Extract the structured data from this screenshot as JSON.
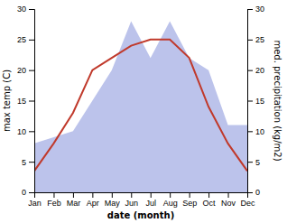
{
  "chart_data": {
    "type": "line",
    "categories": [
      "Jan",
      "Feb",
      "Mar",
      "Apr",
      "May",
      "Jun",
      "Jul",
      "Aug",
      "Sep",
      "Oct",
      "Nov",
      "Dec"
    ],
    "series": [
      {
        "type": "area",
        "axis": "y2",
        "color": "#b0b8e8",
        "values": [
          8,
          9,
          10,
          15,
          20,
          28,
          22,
          28,
          22,
          20,
          11,
          11
        ]
      },
      {
        "type": "line",
        "color": "#c0392b",
        "values": [
          3.5,
          8,
          13,
          20,
          22,
          24,
          25,
          25,
          22,
          14,
          8,
          3.5
        ]
      }
    ],
    "x_label": "date (month)",
    "y_label": "max temp (C)",
    "y2_label": "med. precipitation (kg/m2)",
    "ylim": [
      0,
      30
    ],
    "yticks": [
      0,
      5,
      10,
      15,
      20,
      25,
      30
    ],
    "y2lim": [
      0,
      30
    ],
    "y2ticks": [
      0,
      5,
      10,
      15,
      20,
      25,
      30
    ],
    "grid": false
  }
}
